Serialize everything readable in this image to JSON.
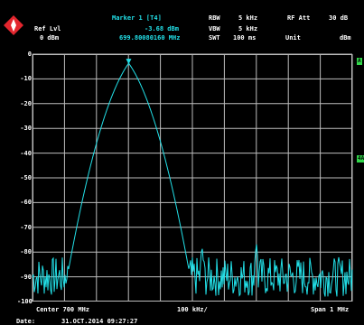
{
  "header": {
    "ref_lvl_label": "Ref Lvl",
    "ref_lvl_value": "0 dBm",
    "marker_title": "Marker 1 [T4]",
    "marker_level": "-3.68 dBm",
    "marker_freq": "699.80080160 MHz",
    "rbw_label": "RBW",
    "rbw_value": "5 kHz",
    "vbw_label": "VBW",
    "vbw_value": "5 kHz",
    "swt_label": "SWT",
    "swt_value": "100 ms",
    "rf_att_label": "RF Att",
    "rf_att_value": "30 dB",
    "unit_label": "Unit",
    "unit_value": "dBm"
  },
  "side_labels": {
    "top": "A",
    "mid": "4AA"
  },
  "footer": {
    "center": "Center 700 MHz",
    "div": "100 kHz/",
    "span": "Span 1 MHz",
    "date_label": "Date:",
    "date_value": "31.OCT.2014  09:27:27"
  },
  "colors": {
    "trace": "#22e0e8",
    "grid": "#bdbdbd",
    "brand": "#e3262e",
    "side_flag": "#32d74b"
  },
  "chart_data": {
    "type": "line",
    "x_label": "",
    "y_label": "",
    "xlim_mhz": [
      699.5,
      700.5
    ],
    "ylim_dbm": [
      -100,
      0
    ],
    "ytick_labels": [
      "0",
      "-10",
      "-20",
      "-30",
      "-40",
      "-50",
      "-60",
      "-70",
      "-80",
      "-90",
      "-100"
    ],
    "grid": true,
    "series": [
      {
        "name": "",
        "peak": {
          "x_mhz": 699.8008,
          "y_dbm": -3.68
        },
        "noise_floor_dbm": -90,
        "spurs": [
          {
            "x_mhz": 699.88,
            "y_dbm": -80
          },
          {
            "x_mhz": 700.03,
            "y_dbm": -77
          },
          {
            "x_mhz": 700.2,
            "y_dbm": -76
          }
        ]
      }
    ]
  }
}
